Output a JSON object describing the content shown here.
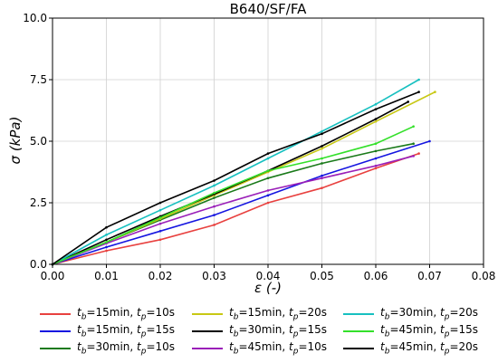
{
  "chart_data": {
    "type": "line",
    "title": "B640/SF/FA",
    "xlabel": "ε (-)",
    "ylabel": "σ (kPa)",
    "xlim": [
      0.0,
      0.08
    ],
    "ylim": [
      0.0,
      10.0
    ],
    "x_ticks": [
      "0.00",
      "0.01",
      "0.02",
      "0.03",
      "0.04",
      "0.05",
      "0.06",
      "0.07",
      "0.08"
    ],
    "y_ticks": [
      "0.0",
      "2.5",
      "5.0",
      "7.5",
      "10.0"
    ],
    "grid": true,
    "legend_position": "bottom",
    "legend": [
      {
        "tb": "15min",
        "tp": "10s",
        "color": "#e8413f"
      },
      {
        "tb": "15min",
        "tp": "15s",
        "color": "#1515e0"
      },
      {
        "tb": "30min",
        "tp": "10s",
        "color": "#1a7a1a"
      },
      {
        "tb": "15min",
        "tp": "20s",
        "color": "#c8c814"
      },
      {
        "tb": "30min",
        "tp": "15s",
        "color": "#000000"
      },
      {
        "tb": "45min",
        "tp": "10s",
        "color": "#9a1fb8"
      },
      {
        "tb": "30min",
        "tp": "20s",
        "color": "#17c0c0"
      },
      {
        "tb": "45min",
        "tp": "15s",
        "color": "#33e02a"
      },
      {
        "tb": "45min",
        "tp": "20s",
        "color": "#000000"
      }
    ],
    "series": [
      {
        "color": "#e8413f",
        "x": [
          0,
          0.01,
          0.02,
          0.03,
          0.04,
          0.05,
          0.06,
          0.068
        ],
        "y": [
          0,
          0.55,
          1.0,
          1.6,
          2.5,
          3.1,
          3.9,
          4.5
        ]
      },
      {
        "color": "#1515e0",
        "x": [
          0,
          0.01,
          0.02,
          0.03,
          0.04,
          0.05,
          0.06,
          0.07
        ],
        "y": [
          0,
          0.7,
          1.35,
          2.0,
          2.8,
          3.6,
          4.3,
          5.0
        ]
      },
      {
        "color": "#1a7a1a",
        "x": [
          0,
          0.01,
          0.02,
          0.03,
          0.04,
          0.05,
          0.06,
          0.067
        ],
        "y": [
          0,
          0.9,
          1.8,
          2.7,
          3.5,
          4.1,
          4.6,
          4.9
        ]
      },
      {
        "color": "#c8c814",
        "x": [
          0,
          0.01,
          0.02,
          0.03,
          0.04,
          0.05,
          0.06,
          0.071
        ],
        "y": [
          0,
          0.9,
          1.85,
          2.8,
          3.75,
          4.7,
          5.8,
          7.0
        ]
      },
      {
        "color": "#000000",
        "x": [
          0,
          0.01,
          0.02,
          0.03,
          0.04,
          0.05,
          0.06,
          0.066
        ],
        "y": [
          0,
          1.0,
          1.95,
          2.85,
          3.8,
          4.8,
          5.9,
          6.6
        ]
      },
      {
        "color": "#9a1fb8",
        "x": [
          0,
          0.01,
          0.02,
          0.03,
          0.04,
          0.05,
          0.06,
          0.067
        ],
        "y": [
          0,
          0.85,
          1.65,
          2.35,
          3.0,
          3.5,
          4.0,
          4.4
        ]
      },
      {
        "color": "#17c0c0",
        "x": [
          0,
          0.01,
          0.02,
          0.03,
          0.04,
          0.05,
          0.06,
          0.068
        ],
        "y": [
          0,
          1.2,
          2.2,
          3.2,
          4.3,
          5.4,
          6.5,
          7.5
        ]
      },
      {
        "color": "#33e02a",
        "x": [
          0,
          0.01,
          0.02,
          0.03,
          0.04,
          0.05,
          0.06,
          0.067
        ],
        "y": [
          0,
          0.9,
          1.9,
          2.9,
          3.8,
          4.3,
          4.9,
          5.6
        ]
      },
      {
        "color": "#000000",
        "x": [
          0,
          0.01,
          0.02,
          0.03,
          0.04,
          0.05,
          0.06,
          0.068
        ],
        "y": [
          0,
          1.5,
          2.5,
          3.4,
          4.5,
          5.3,
          6.3,
          7.0
        ]
      }
    ]
  }
}
